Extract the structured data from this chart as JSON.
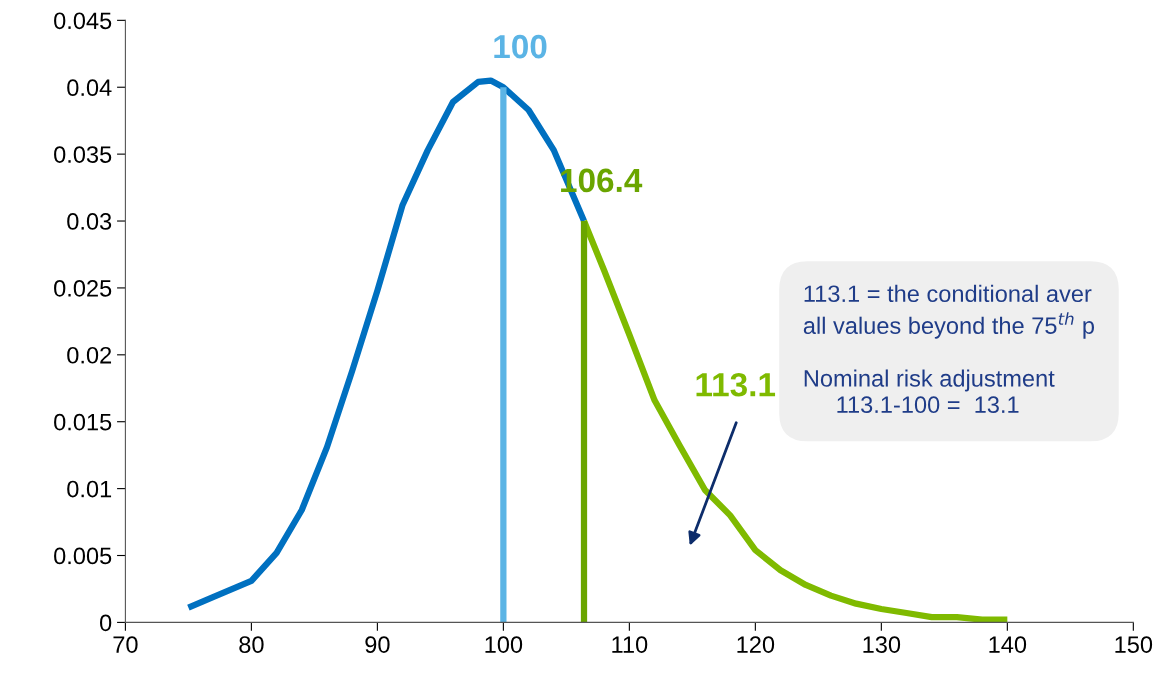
{
  "chart_data": {
    "type": "line",
    "series": [
      {
        "color": "#0070c0",
        "x": [
          75,
          77,
          80,
          82,
          84,
          86,
          88,
          90,
          92,
          94,
          96,
          98,
          99,
          100,
          102,
          104,
          106.4
        ],
        "values": [
          0.0011,
          0.0019,
          0.0031,
          0.0052,
          0.0084,
          0.0131,
          0.0188,
          0.0248,
          0.0312,
          0.0353,
          0.0389,
          0.0404,
          0.0405,
          0.04,
          0.0383,
          0.0353,
          0.03
        ]
      },
      {
        "color": "#7fba00",
        "x": [
          106.4,
          108,
          110,
          112,
          114,
          116,
          118,
          120,
          122,
          124,
          126,
          128,
          130,
          132,
          134,
          136,
          138,
          140
        ],
        "values": [
          0.03,
          0.0263,
          0.0215,
          0.0166,
          0.0132,
          0.0099,
          0.008,
          0.0054,
          0.0039,
          0.0028,
          0.002,
          0.0014,
          0.001,
          0.0007,
          0.0004,
          0.0004,
          0.0002,
          0.0002
        ]
      },
      {
        "color": "#5bb4e5",
        "x": [
          100,
          100
        ],
        "values": [
          0,
          0.04
        ]
      },
      {
        "color": "#6aa500",
        "x": [
          106.4,
          106.4
        ],
        "values": [
          0,
          0.03
        ]
      }
    ],
    "xlim": [
      70,
      150
    ],
    "xticks": [
      70,
      80,
      90,
      100,
      110,
      120,
      130,
      140,
      150
    ],
    "ylim": [
      0,
      0.045
    ],
    "yticks": [
      {
        "value": 0,
        "label": "0"
      },
      0.005,
      0.01,
      0.015,
      0.02,
      0.025,
      0.03,
      0.035,
      0.04,
      0.045
    ],
    "grid": false,
    "legend": false,
    "marker": "none",
    "line_style": "solid",
    "annotations": [
      {
        "text": "100",
        "x": 100,
        "y": 0.04
      },
      {
        "text": "106.4",
        "x": 106.4,
        "y": 0.03
      },
      "113.1",
      "113.1 = the conditional aver\nall values beyond the 75$^{th}$ p\n\nNominal risk adjustment\n     113.1-100 =  13.1"
    ]
  }
}
